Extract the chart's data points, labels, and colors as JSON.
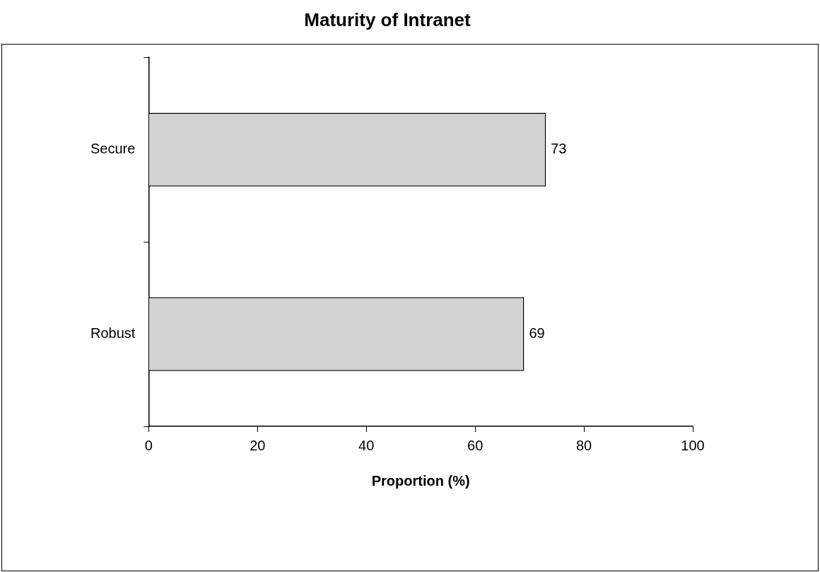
{
  "chart_data": {
    "type": "bar",
    "orientation": "horizontal",
    "title": "Maturity of Intranet",
    "xlabel": "Proportion (%)",
    "categories": [
      "Secure",
      "Robust"
    ],
    "values": [
      73,
      69
    ],
    "color": "#d3d3d3",
    "xlim": [
      0,
      100
    ],
    "xticks": [
      0,
      20,
      40,
      60,
      80,
      100
    ],
    "grid": false,
    "legend": false,
    "data_labels": true
  }
}
